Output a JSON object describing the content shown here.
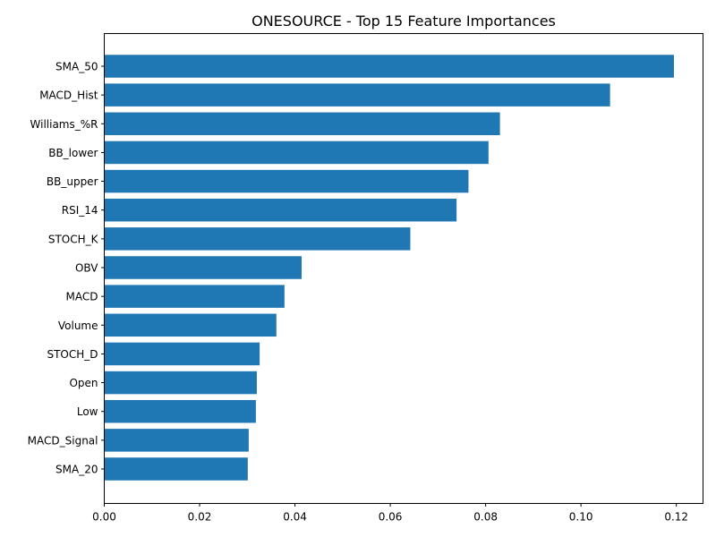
{
  "chart_data": {
    "type": "bar",
    "orientation": "horizontal",
    "title": "ONESOURCE - Top 15 Feature Importances",
    "xlabel": "",
    "ylabel": "",
    "categories": [
      "SMA_50",
      "MACD_Hist",
      "Williams_%R",
      "BB_lower",
      "BB_upper",
      "RSI_14",
      "STOCH_K",
      "OBV",
      "MACD",
      "Volume",
      "STOCH_D",
      "Open",
      "Low",
      "MACD_Signal",
      "SMA_20"
    ],
    "values": [
      0.1195,
      0.1061,
      0.083,
      0.0806,
      0.0764,
      0.0739,
      0.0642,
      0.0414,
      0.0378,
      0.0361,
      0.0326,
      0.032,
      0.0318,
      0.0303,
      0.0301
    ],
    "xlim": [
      0,
      0.1256
    ],
    "xticks": [
      0.0,
      0.02,
      0.04,
      0.06,
      0.08,
      0.1,
      0.12
    ],
    "xtick_labels": [
      "0.00",
      "0.02",
      "0.04",
      "0.06",
      "0.08",
      "0.10",
      "0.12"
    ],
    "grid": false,
    "bar_color": "#1f77b4"
  }
}
